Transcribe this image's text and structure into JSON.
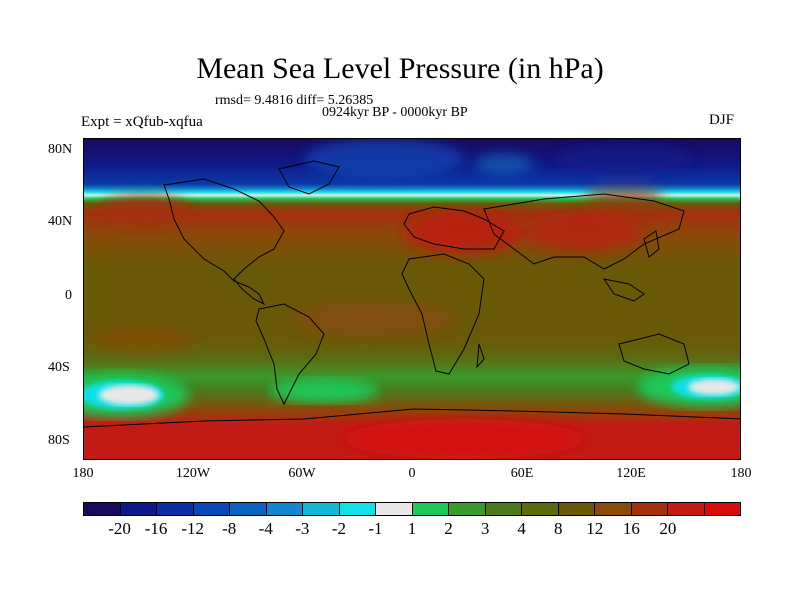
{
  "title": "Mean Sea Level Pressure (in hPa)",
  "stats": "rmsd= 9.4816 diff= 5.26385",
  "period": "0924kyr BP - 0000kyr BP",
  "experiment": "Expt = xQfub-xqfua",
  "season": "DJF",
  "lat_ticks": [
    "80N",
    "40N",
    "0",
    "40S",
    "80S"
  ],
  "lon_ticks": [
    "180",
    "120W",
    "60W",
    "0",
    "60E",
    "120E",
    "180"
  ],
  "colorbar": {
    "colors": [
      "#1a0a5e",
      "#0d1a8c",
      "#0a2fa5",
      "#0a48b8",
      "#0d63c2",
      "#1486cf",
      "#12b8d8",
      "#10e0e8",
      "#e8e8e8",
      "#1ec85a",
      "#3a9a2a",
      "#4a7a1a",
      "#5e6a10",
      "#6a5a08",
      "#8a4a0a",
      "#a53010",
      "#c21a14",
      "#d80c0c"
    ],
    "labels": [
      "-20",
      "-16",
      "-12",
      "-8",
      "-4",
      "-3",
      "-2",
      "-1",
      "1",
      "2",
      "3",
      "4",
      "8",
      "12",
      "16",
      "20"
    ]
  }
}
